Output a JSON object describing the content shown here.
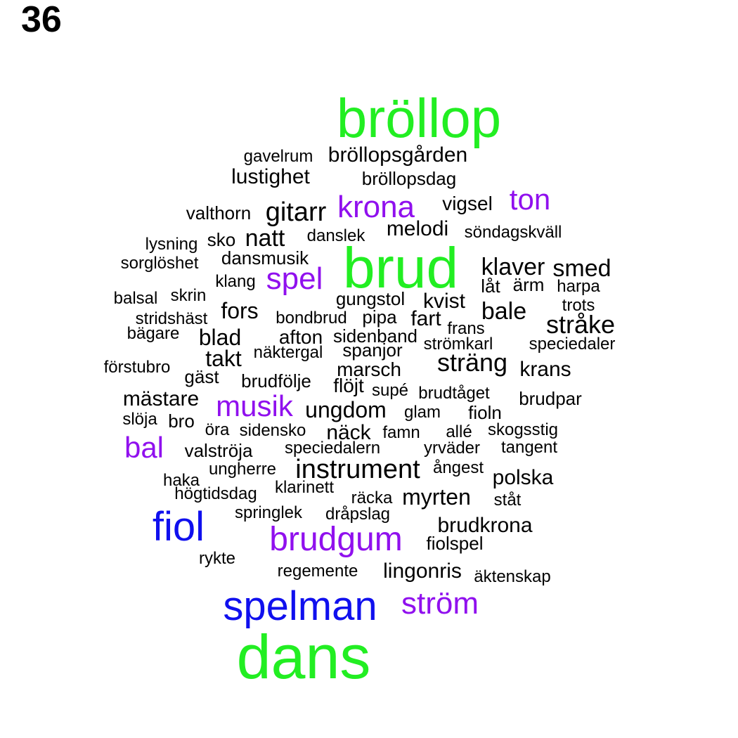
{
  "panel_number": "36",
  "colors": {
    "green": "#22ee22",
    "purple": "#9010ee",
    "blue": "#1010ee",
    "black": "#000000"
  },
  "words": [
    {
      "text": "bröllop",
      "color": "green"
    },
    {
      "text": "gavelrum",
      "color": "black"
    },
    {
      "text": "bröllopsgården",
      "color": "black"
    },
    {
      "text": "lustighet",
      "color": "black"
    },
    {
      "text": "bröllopsdag",
      "color": "black"
    },
    {
      "text": "ton",
      "color": "purple"
    },
    {
      "text": "krona",
      "color": "purple"
    },
    {
      "text": "valthorn",
      "color": "black"
    },
    {
      "text": "gitarr",
      "color": "black"
    },
    {
      "text": "vigsel",
      "color": "black"
    },
    {
      "text": "melodi",
      "color": "black"
    },
    {
      "text": "söndagskväll",
      "color": "black"
    },
    {
      "text": "lysning",
      "color": "black"
    },
    {
      "text": "sko",
      "color": "black"
    },
    {
      "text": "natt",
      "color": "black"
    },
    {
      "text": "danslek",
      "color": "black"
    },
    {
      "text": "brud",
      "color": "green"
    },
    {
      "text": "sorglöshet",
      "color": "black"
    },
    {
      "text": "dansmusik",
      "color": "black"
    },
    {
      "text": "klaver",
      "color": "black"
    },
    {
      "text": "smed",
      "color": "black"
    },
    {
      "text": "klang",
      "color": "black"
    },
    {
      "text": "spel",
      "color": "purple"
    },
    {
      "text": "låt",
      "color": "black"
    },
    {
      "text": "ärm",
      "color": "black"
    },
    {
      "text": "harpa",
      "color": "black"
    },
    {
      "text": "balsal",
      "color": "black"
    },
    {
      "text": "skrin",
      "color": "black"
    },
    {
      "text": "gungstol",
      "color": "black"
    },
    {
      "text": "kvist",
      "color": "black"
    },
    {
      "text": "trots",
      "color": "black"
    },
    {
      "text": "fors",
      "color": "black"
    },
    {
      "text": "bale",
      "color": "black"
    },
    {
      "text": "stridshäst",
      "color": "black"
    },
    {
      "text": "bondbrud",
      "color": "black"
    },
    {
      "text": "pipa",
      "color": "black"
    },
    {
      "text": "fart",
      "color": "black"
    },
    {
      "text": "stråke",
      "color": "black"
    },
    {
      "text": "frans",
      "color": "black"
    },
    {
      "text": "bägare",
      "color": "black"
    },
    {
      "text": "blad",
      "color": "black"
    },
    {
      "text": "afton",
      "color": "black"
    },
    {
      "text": "sidenband",
      "color": "black"
    },
    {
      "text": "strömkarl",
      "color": "black"
    },
    {
      "text": "speciedaler",
      "color": "black"
    },
    {
      "text": "näktergal",
      "color": "black"
    },
    {
      "text": "spanjor",
      "color": "black"
    },
    {
      "text": "takt",
      "color": "black"
    },
    {
      "text": "sträng",
      "color": "black"
    },
    {
      "text": "förstubro",
      "color": "black"
    },
    {
      "text": "marsch",
      "color": "black"
    },
    {
      "text": "krans",
      "color": "black"
    },
    {
      "text": "gäst",
      "color": "black"
    },
    {
      "text": "brudfölje",
      "color": "black"
    },
    {
      "text": "flöjt",
      "color": "black"
    },
    {
      "text": "supé",
      "color": "black"
    },
    {
      "text": "brudtåget",
      "color": "black"
    },
    {
      "text": "brudpar",
      "color": "black"
    },
    {
      "text": "mästare",
      "color": "black"
    },
    {
      "text": "musik",
      "color": "purple"
    },
    {
      "text": "ungdom",
      "color": "black"
    },
    {
      "text": "glam",
      "color": "black"
    },
    {
      "text": "fioln",
      "color": "black"
    },
    {
      "text": "slöja",
      "color": "black"
    },
    {
      "text": "bro",
      "color": "black"
    },
    {
      "text": "öra",
      "color": "black"
    },
    {
      "text": "sidensko",
      "color": "black"
    },
    {
      "text": "näck",
      "color": "black"
    },
    {
      "text": "famn",
      "color": "black"
    },
    {
      "text": "allé",
      "color": "black"
    },
    {
      "text": "skogsstig",
      "color": "black"
    },
    {
      "text": "bal",
      "color": "purple"
    },
    {
      "text": "valströja",
      "color": "black"
    },
    {
      "text": "speciedalern",
      "color": "black"
    },
    {
      "text": "yrväder",
      "color": "black"
    },
    {
      "text": "tangent",
      "color": "black"
    },
    {
      "text": "instrument",
      "color": "black"
    },
    {
      "text": "ungherre",
      "color": "black"
    },
    {
      "text": "ångest",
      "color": "black"
    },
    {
      "text": "haka",
      "color": "black"
    },
    {
      "text": "polska",
      "color": "black"
    },
    {
      "text": "högtidsdag",
      "color": "black"
    },
    {
      "text": "klarinett",
      "color": "black"
    },
    {
      "text": "räcka",
      "color": "black"
    },
    {
      "text": "myrten",
      "color": "black"
    },
    {
      "text": "ståt",
      "color": "black"
    },
    {
      "text": "springlek",
      "color": "black"
    },
    {
      "text": "dråpslag",
      "color": "black"
    },
    {
      "text": "fiol",
      "color": "blue"
    },
    {
      "text": "brudkrona",
      "color": "black"
    },
    {
      "text": "brudgum",
      "color": "purple"
    },
    {
      "text": "fiolspel",
      "color": "black"
    },
    {
      "text": "rykte",
      "color": "black"
    },
    {
      "text": "regemente",
      "color": "black"
    },
    {
      "text": "lingonris",
      "color": "black"
    },
    {
      "text": "äktenskap",
      "color": "black"
    },
    {
      "text": "spelman",
      "color": "blue"
    },
    {
      "text": "ström",
      "color": "purple"
    },
    {
      "text": "dans",
      "color": "green"
    }
  ]
}
